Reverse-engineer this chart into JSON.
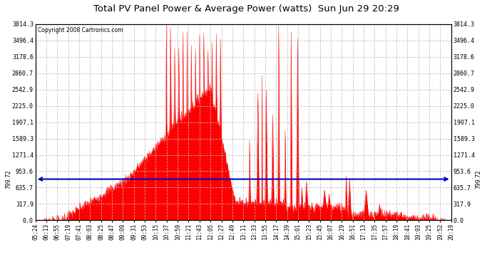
{
  "title": "Total PV Panel Power & Average Power (watts)  Sun Jun 29 20:29",
  "copyright": "Copyright 2008 Cartronics.com",
  "avg_power": 799.72,
  "y_max": 3814.3,
  "y_ticks": [
    0.0,
    317.9,
    635.7,
    953.6,
    1271.4,
    1589.3,
    1907.1,
    2225.0,
    2542.9,
    2860.7,
    3178.6,
    3496.4,
    3814.3
  ],
  "bg_color": "#ffffff",
  "plot_bg_color": "#ffffff",
  "fill_color": "#ff0000",
  "line_color": "#ff0000",
  "avg_line_color": "#0000bb",
  "grid_color": "#bbbbbb",
  "x_labels": [
    "05:24",
    "06:13",
    "06:55",
    "07:19",
    "07:41",
    "08:03",
    "08:25",
    "08:47",
    "09:09",
    "09:31",
    "09:53",
    "10:15",
    "10:37",
    "10:59",
    "11:21",
    "11:43",
    "12:05",
    "12:27",
    "12:49",
    "13:11",
    "13:33",
    "13:55",
    "14:17",
    "14:39",
    "15:01",
    "15:23",
    "15:45",
    "16:07",
    "16:29",
    "16:51",
    "17:13",
    "17:35",
    "17:57",
    "18:19",
    "18:41",
    "19:03",
    "19:25",
    "19:52",
    "20:19"
  ],
  "seed": 7
}
